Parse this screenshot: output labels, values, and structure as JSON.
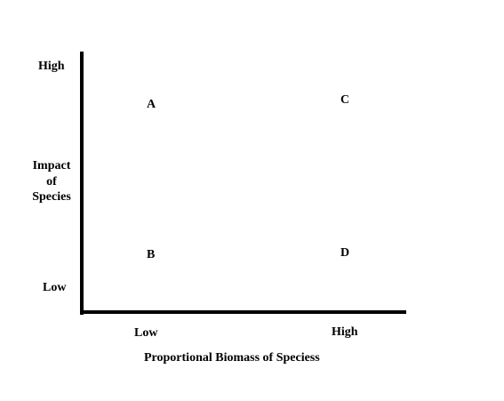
{
  "y_axis": {
    "high_label": "High",
    "low_label": "Low",
    "title_lines": [
      "Impact",
      "of",
      "Species"
    ]
  },
  "x_axis": {
    "low_label": "Low",
    "high_label": "High",
    "title": "Proportional Biomass of Speciess"
  },
  "quadrants": {
    "a": "A",
    "b": "B",
    "c": "C",
    "d": "D"
  }
}
